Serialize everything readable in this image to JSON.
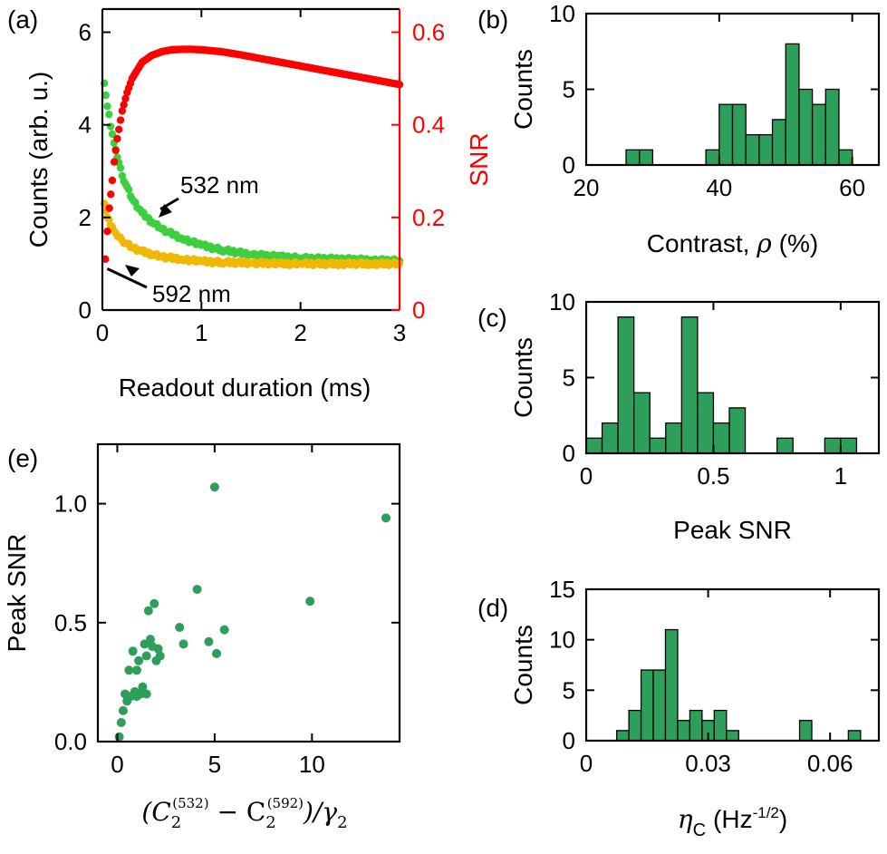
{
  "colors": {
    "green": "#3ecf3e",
    "yellow": "#f0b800",
    "red": "#ff0000",
    "bar": "#2e9e5b",
    "scatter": "#2e9e5b"
  },
  "chart_data": [
    {
      "id": "a",
      "type": "scatter",
      "panel_label": "(a)",
      "xlabel": "Readout duration (ms)",
      "ylabel": "Counts (arb. u.)",
      "y2label": "SNR",
      "xlim": [
        0,
        3
      ],
      "ylim": [
        0,
        6.5
      ],
      "y2lim": [
        0,
        0.65
      ],
      "xticks": [
        0,
        1,
        2,
        3
      ],
      "xtick_labels": [
        "0",
        "1",
        "2",
        "3"
      ],
      "yticks": [
        0,
        2,
        4,
        6
      ],
      "ytick_labels": [
        "0",
        "2",
        "4",
        "6"
      ],
      "y2ticks": [
        0,
        0.2,
        0.4,
        0.6
      ],
      "y2tick_labels": [
        "0",
        "0.2",
        "0.4",
        "0.6"
      ],
      "series": [
        {
          "name": "532 nm",
          "axis": "left",
          "color_key": "green",
          "x": [
            0.02,
            0.05,
            0.1,
            0.15,
            0.2,
            0.3,
            0.4,
            0.5,
            0.6,
            0.8,
            1.0,
            1.2,
            1.5,
            1.8,
            2.0,
            2.4,
            2.7,
            3.0
          ],
          "y": [
            4.9,
            4.4,
            3.8,
            3.3,
            2.9,
            2.4,
            2.1,
            1.9,
            1.75,
            1.55,
            1.4,
            1.3,
            1.2,
            1.15,
            1.12,
            1.1,
            1.08,
            1.06
          ]
        },
        {
          "name": "592 nm",
          "axis": "left",
          "color_key": "yellow",
          "x": [
            0.02,
            0.05,
            0.1,
            0.15,
            0.2,
            0.3,
            0.4,
            0.5,
            0.6,
            0.8,
            1.0,
            1.2,
            1.5,
            1.8,
            2.0,
            2.4,
            2.7,
            3.0
          ],
          "y": [
            2.3,
            2.0,
            1.8,
            1.6,
            1.5,
            1.35,
            1.27,
            1.2,
            1.15,
            1.1,
            1.05,
            1.03,
            1.02,
            1.0,
            1.0,
            1.0,
            1.0,
            1.0
          ]
        },
        {
          "name": "SNR",
          "axis": "right",
          "color_key": "red",
          "x": [
            0.03,
            0.05,
            0.07,
            0.1,
            0.12,
            0.15,
            0.2,
            0.25,
            0.3,
            0.4,
            0.5,
            0.6,
            0.7,
            0.8,
            0.9,
            1.0,
            1.2,
            1.4,
            1.6,
            1.8,
            2.0,
            2.2,
            2.4,
            2.6,
            2.8,
            3.0
          ],
          "y": [
            0.11,
            0.17,
            0.22,
            0.28,
            0.32,
            0.37,
            0.43,
            0.47,
            0.5,
            0.535,
            0.55,
            0.558,
            0.562,
            0.563,
            0.563,
            0.562,
            0.558,
            0.551,
            0.543,
            0.535,
            0.527,
            0.519,
            0.511,
            0.503,
            0.495,
            0.487
          ]
        }
      ],
      "annotations": [
        {
          "text": "532 nm",
          "target": [
            0.55,
            2.1
          ]
        },
        {
          "text": "592 nm",
          "target": [
            0.25,
            1.05
          ]
        }
      ]
    },
    {
      "id": "b",
      "type": "bar",
      "panel_label": "(b)",
      "xlabel": "Contrast,",
      "xlabel_symbol": "ρ",
      "xlabel_unit": "(%)",
      "ylabel": "Counts",
      "xlim": [
        20,
        64
      ],
      "ylim": [
        0,
        10
      ],
      "xticks": [
        20,
        40,
        60
      ],
      "xtick_labels": [
        "20",
        "40",
        "60"
      ],
      "yticks": [
        0,
        5,
        10
      ],
      "ytick_labels": [
        "0",
        "5",
        "10"
      ],
      "bins": [
        [
          26,
          28
        ],
        [
          28,
          30
        ],
        [
          38,
          40
        ],
        [
          40,
          42
        ],
        [
          42,
          44
        ],
        [
          44,
          46
        ],
        [
          46,
          48
        ],
        [
          48,
          50
        ],
        [
          50,
          52
        ],
        [
          52,
          54
        ],
        [
          54,
          56
        ],
        [
          56,
          58
        ],
        [
          58,
          60
        ]
      ],
      "values": [
        1,
        1,
        1,
        4,
        4,
        2,
        2,
        3,
        8,
        5,
        4,
        5,
        1
      ]
    },
    {
      "id": "c",
      "type": "bar",
      "panel_label": "(c)",
      "xlabel": "Peak SNR",
      "ylabel": "Counts",
      "xlim": [
        0,
        1.15
      ],
      "ylim": [
        0,
        10
      ],
      "xticks": [
        0,
        0.5,
        1
      ],
      "xtick_labels": [
        "0",
        "0.5",
        "1"
      ],
      "yticks": [
        0,
        5,
        10
      ],
      "ytick_labels": [
        "0",
        "5",
        "10"
      ],
      "bins": [
        [
          0,
          0.0625
        ],
        [
          0.0625,
          0.125
        ],
        [
          0.125,
          0.1875
        ],
        [
          0.1875,
          0.25
        ],
        [
          0.25,
          0.3125
        ],
        [
          0.3125,
          0.375
        ],
        [
          0.375,
          0.4375
        ],
        [
          0.4375,
          0.5
        ],
        [
          0.5,
          0.5625
        ],
        [
          0.5625,
          0.625
        ],
        [
          0.75,
          0.8125
        ],
        [
          0.9375,
          1.0
        ],
        [
          1.0,
          1.0625
        ]
      ],
      "values": [
        1,
        2,
        9,
        4,
        1,
        2,
        9,
        4,
        2,
        3,
        1,
        1,
        1
      ]
    },
    {
      "id": "d",
      "type": "bar",
      "panel_label": "(d)",
      "xlabel_symbol": "η",
      "xlabel_sub": "C",
      "xlabel_unit": "(Hz",
      "xlabel_sup": "-1/2",
      "xlabel_close": ")",
      "ylabel": "Counts",
      "xlim": [
        0,
        0.072
      ],
      "ylim": [
        0,
        15
      ],
      "xticks": [
        0,
        0.03,
        0.06
      ],
      "xtick_labels": [
        "0",
        "0.03",
        "0.06"
      ],
      "yticks": [
        0,
        5,
        10,
        15
      ],
      "ytick_labels": [
        "0",
        "5",
        "10",
        "15"
      ],
      "bins": [
        [
          0.0075,
          0.0105
        ],
        [
          0.0105,
          0.0135
        ],
        [
          0.0135,
          0.0165
        ],
        [
          0.0165,
          0.0195
        ],
        [
          0.0195,
          0.0225
        ],
        [
          0.0225,
          0.0255
        ],
        [
          0.0255,
          0.0285
        ],
        [
          0.0285,
          0.0315
        ],
        [
          0.0315,
          0.0345
        ],
        [
          0.0345,
          0.0375
        ],
        [
          0.0525,
          0.0555
        ],
        [
          0.0645,
          0.0675
        ]
      ],
      "values": [
        1,
        3,
        7,
        7,
        11,
        2,
        3,
        2,
        3,
        1,
        2,
        1
      ]
    },
    {
      "id": "e",
      "type": "scatter",
      "panel_label": "(e)",
      "ylabel": "Peak SNR",
      "xlabel_math": true,
      "xlim": [
        -1,
        14.5
      ],
      "ylim": [
        0,
        1.25
      ],
      "xticks": [
        0,
        5,
        10
      ],
      "xtick_labels": [
        "0",
        "5",
        "10"
      ],
      "yticks": [
        0,
        0.5,
        1.0
      ],
      "ytick_labels": [
        "0.0",
        "0.5",
        "1.0"
      ],
      "x": [
        0.1,
        0.2,
        0.3,
        0.4,
        0.5,
        0.6,
        0.7,
        0.8,
        0.9,
        1.0,
        1.0,
        1.1,
        1.2,
        1.3,
        1.4,
        1.5,
        1.5,
        1.6,
        1.7,
        1.8,
        1.9,
        2.0,
        2.1,
        2.2,
        3.2,
        3.4,
        4.1,
        4.7,
        5.0,
        5.1,
        5.5,
        9.9,
        13.8
      ],
      "y": [
        0.02,
        0.08,
        0.13,
        0.2,
        0.17,
        0.3,
        0.19,
        0.38,
        0.21,
        0.19,
        0.3,
        0.34,
        0.2,
        0.23,
        0.41,
        0.2,
        0.36,
        0.55,
        0.43,
        0.4,
        0.58,
        0.34,
        0.39,
        0.36,
        0.48,
        0.41,
        0.64,
        0.42,
        1.07,
        0.37,
        0.47,
        0.59,
        0.94
      ]
    }
  ]
}
